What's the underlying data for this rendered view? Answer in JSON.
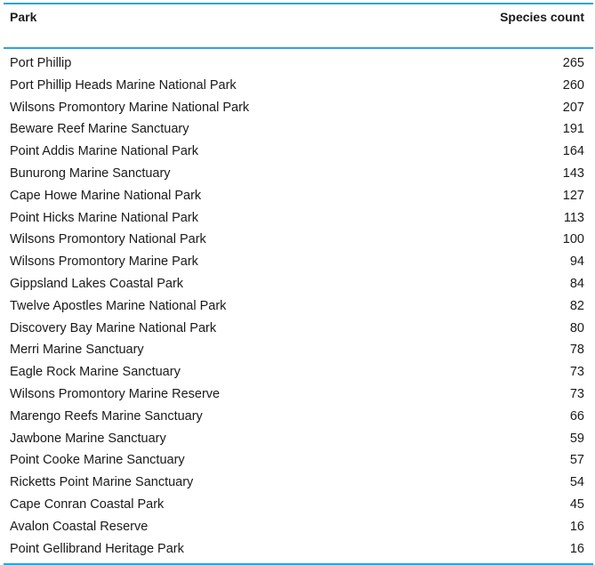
{
  "chart_data": {
    "type": "table",
    "columns": [
      "Park",
      "Species count"
    ],
    "rows": [
      {
        "park": "Port Phillip",
        "count": 265
      },
      {
        "park": "Port Phillip Heads Marine National Park",
        "count": 260
      },
      {
        "park": "Wilsons Promontory Marine National Park",
        "count": 207
      },
      {
        "park": "Beware Reef Marine Sanctuary",
        "count": 191
      },
      {
        "park": "Point Addis Marine National Park",
        "count": 164
      },
      {
        "park": "Bunurong Marine Sanctuary",
        "count": 143
      },
      {
        "park": "Cape Howe Marine National Park",
        "count": 127
      },
      {
        "park": "Point Hicks Marine National Park",
        "count": 113
      },
      {
        "park": "Wilsons Promontory National Park",
        "count": 100
      },
      {
        "park": "Wilsons Promontory Marine Park",
        "count": 94
      },
      {
        "park": "Gippsland Lakes Coastal Park",
        "count": 84
      },
      {
        "park": "Twelve Apostles Marine National Park",
        "count": 82
      },
      {
        "park": "Discovery Bay Marine National Park",
        "count": 80
      },
      {
        "park": "Merri Marine Sanctuary",
        "count": 78
      },
      {
        "park": "Eagle Rock Marine Sanctuary",
        "count": 73
      },
      {
        "park": "Wilsons Promontory Marine Reserve",
        "count": 73
      },
      {
        "park": "Marengo Reefs Marine Sanctuary",
        "count": 66
      },
      {
        "park": "Jawbone Marine Sanctuary",
        "count": 59
      },
      {
        "park": "Point Cooke Marine Sanctuary",
        "count": 57
      },
      {
        "park": "Ricketts Point Marine Sanctuary",
        "count": 54
      },
      {
        "park": "Cape Conran Coastal Park",
        "count": 45
      },
      {
        "park": "Avalon Coastal Reserve",
        "count": 16
      },
      {
        "park": "Point Gellibrand Heritage Park",
        "count": 16
      }
    ]
  },
  "colors": {
    "rule": "#2ea3dc",
    "text": "#1a1a1a"
  }
}
